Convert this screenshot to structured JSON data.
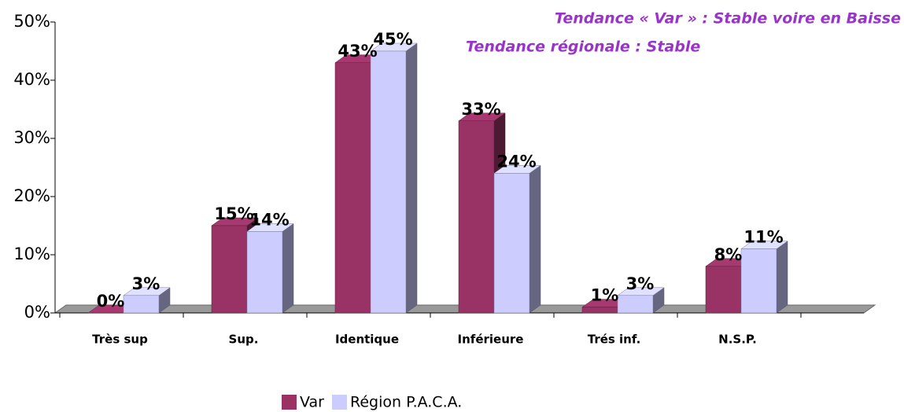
{
  "chart_data": {
    "type": "bar3d",
    "annotations": [
      "Tendance « Var » : Stable voire en Baisse",
      "Tendance régionale : Stable"
    ],
    "categories": [
      "Très sup",
      "Sup.",
      "Identique",
      "Inférieure",
      "Trés inf.",
      "N.S.P."
    ],
    "series": [
      {
        "name": "Var",
        "color": "#993366",
        "values": [
          0,
          15,
          43,
          33,
          1,
          8
        ],
        "value_labels": [
          "0%",
          "15%",
          "43%",
          "33%",
          "1%",
          "8%"
        ]
      },
      {
        "name": "Région P.A.C.A.",
        "color": "#ccccff",
        "values": [
          3,
          14,
          45,
          24,
          3,
          11
        ],
        "value_labels": [
          "3%",
          "14%",
          "45%",
          "24%",
          "3%",
          "11%"
        ]
      }
    ],
    "ylim": [
      0,
      50
    ],
    "yticks": [
      {
        "value": 0,
        "label": "0%"
      },
      {
        "value": 10,
        "label": "10%"
      },
      {
        "value": 20,
        "label": "20%"
      },
      {
        "value": 30,
        "label": "30%"
      },
      {
        "value": 40,
        "label": "40%"
      },
      {
        "value": 50,
        "label": "50%"
      }
    ],
    "legend": "bottom"
  }
}
